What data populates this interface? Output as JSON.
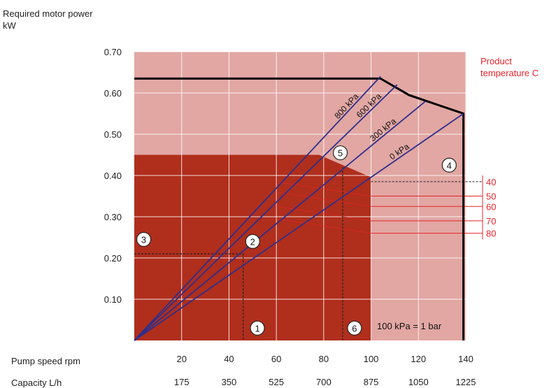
{
  "chart_data": {
    "type": "line",
    "ylabel_line1": "Required motor power",
    "ylabel_line2": "kW",
    "temp_title_line1": "Product",
    "temp_title_line2": "temperature C",
    "xlabel_speed": "Pump speed rpm",
    "xlabel_capacity": "Capacity L/h",
    "y_ticks": [
      "0.70",
      "0.60",
      "0.50",
      "0.40",
      "0.30",
      "0.20",
      "0.10"
    ],
    "y_values": [
      0.7,
      0.6,
      0.5,
      0.4,
      0.3,
      0.2,
      0.1
    ],
    "ylim": [
      0,
      0.7
    ],
    "xlim": [
      0,
      140
    ],
    "x_speed_ticks": [
      20,
      40,
      60,
      80,
      100,
      120,
      140
    ],
    "x_capacity_ticks": [
      175,
      350,
      525,
      700,
      875,
      1050,
      1225
    ],
    "grid": true,
    "series": [
      {
        "name": "800 kPa",
        "x": [
          0,
          104
        ],
        "y": [
          0,
          0.64
        ]
      },
      {
        "name": "600 kPa",
        "x": [
          0,
          111
        ],
        "y": [
          0,
          0.62
        ]
      },
      {
        "name": "300 kPa",
        "x": [
          0,
          123
        ],
        "y": [
          0,
          0.58
        ]
      },
      {
        "name": "0 kPa",
        "x": [
          0,
          139
        ],
        "y": [
          0,
          0.55
        ]
      }
    ],
    "max_power_outline": {
      "x": [
        0,
        104,
        116,
        139,
        139
      ],
      "y": [
        0.635,
        0.635,
        0.595,
        0.55,
        0
      ]
    },
    "operating_region": {
      "x_max": 100,
      "y_max": 0.45
    },
    "product_temperatures": [
      {
        "label": "40",
        "y": 0.385
      },
      {
        "label": "50",
        "y": 0.35
      },
      {
        "label": "60",
        "y": 0.325
      },
      {
        "label": "70",
        "y": 0.29
      },
      {
        "label": "80",
        "y": 0.26
      }
    ],
    "markers": [
      {
        "label": "1",
        "x": 52,
        "y": 0.03
      },
      {
        "label": "2",
        "x": 50,
        "y": 0.24
      },
      {
        "label": "3",
        "x": 4,
        "y": 0.245
      },
      {
        "label": "4",
        "x": 133,
        "y": 0.425
      },
      {
        "label": "5",
        "x": 87,
        "y": 0.455
      },
      {
        "label": "6",
        "x": 93,
        "y": 0.03
      }
    ],
    "reference_lines": [
      {
        "x": [
          0,
          46,
          46
        ],
        "y": [
          0.21,
          0.21,
          0
        ]
      },
      {
        "x": [
          88,
          88
        ],
        "y": [
          0.42,
          0
        ]
      },
      {
        "x": [
          100,
          144
        ],
        "y": [
          0.385,
          0.385
        ]
      }
    ],
    "annotation": "100 kPa = 1 bar",
    "colors": {
      "outer": "#e2a7a3",
      "inner": "#b02e1c",
      "lines": "#2e2f8c",
      "temperature": "#e8242b"
    }
  }
}
